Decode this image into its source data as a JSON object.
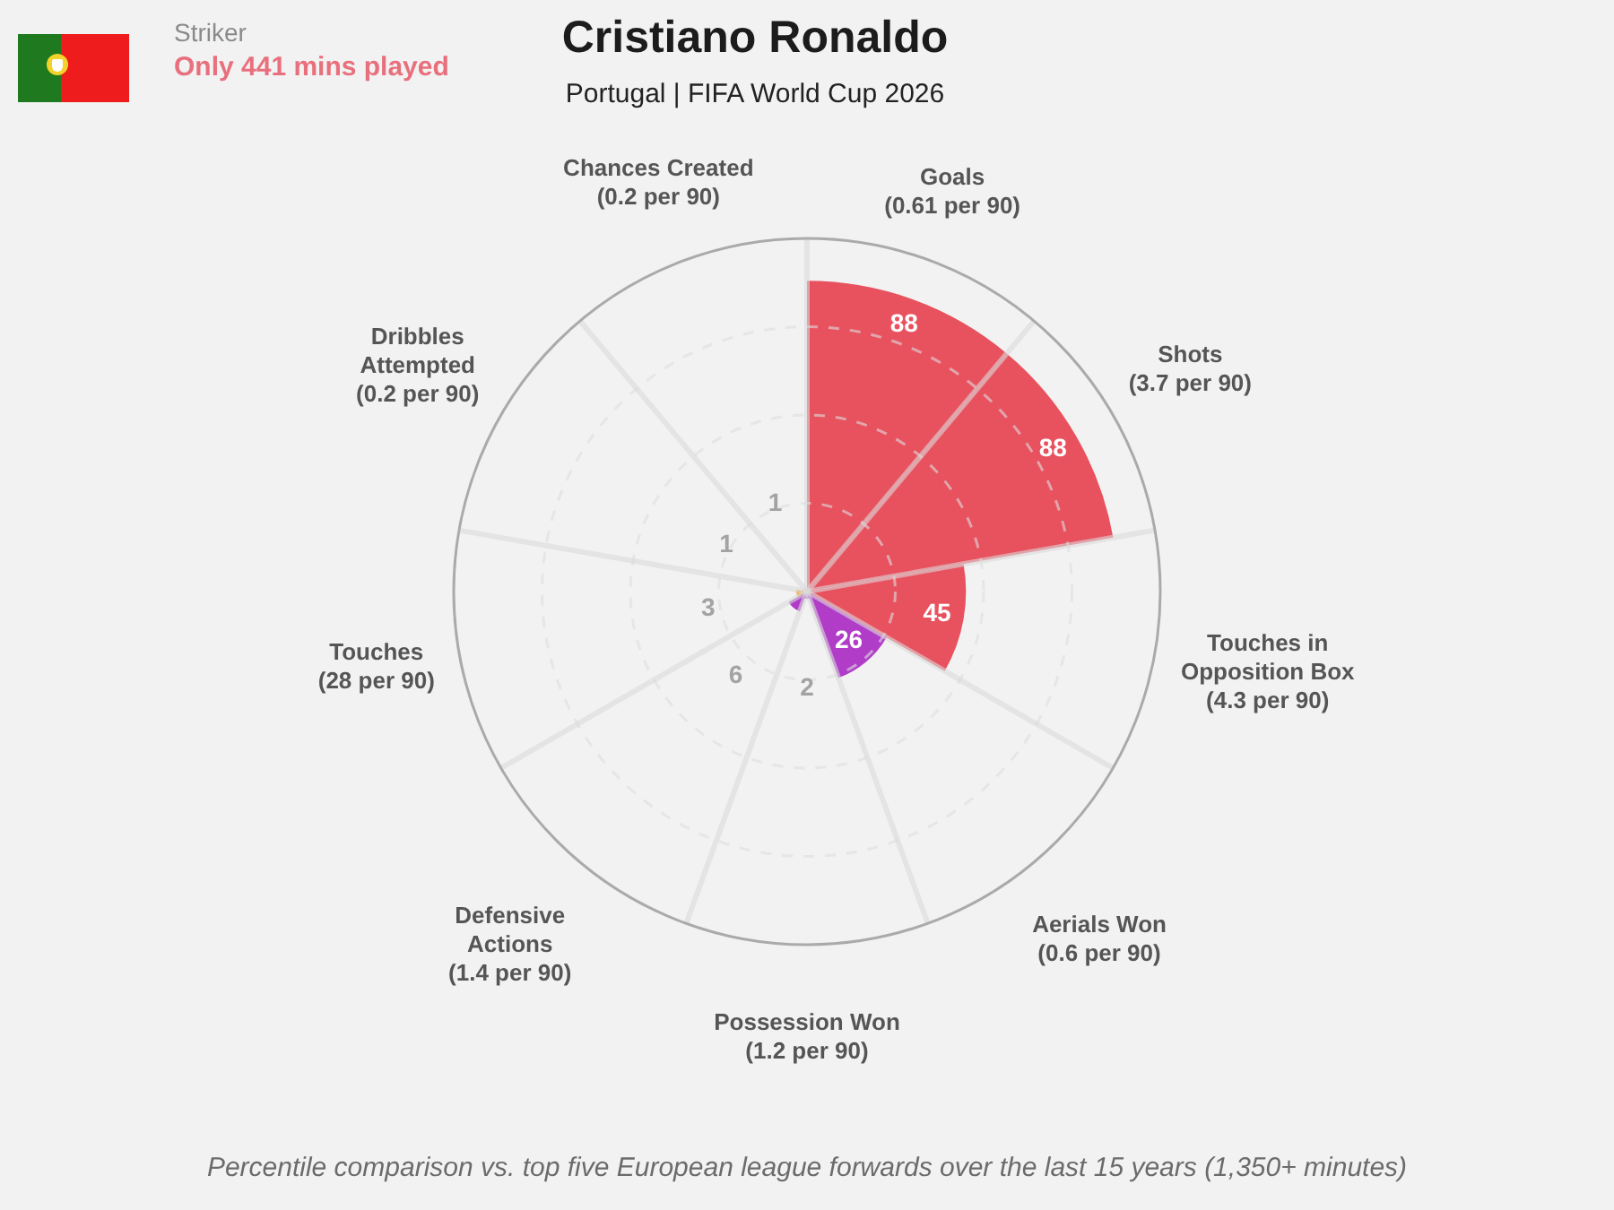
{
  "chart_data": {
    "type": "other",
    "title": "Cristiano Ronaldo",
    "subtitle": "Portugal | FIFA World Cup 2026",
    "categories": [
      "Goals (0.61 per 90)",
      "Shots (3.7 per 90)",
      "Touches in Opposition Box (4.3 per 90)",
      "Aerials Won (0.6 per 90)",
      "Possession Won (1.2 per 90)",
      "Defensive Actions (1.4 per 90)",
      "Touches (28 per 90)",
      "Dribbles Attempted (0.2 per 90)",
      "Chances Created (0.2 per 90)"
    ],
    "values": [
      88,
      88,
      45,
      26,
      2,
      6,
      3,
      1,
      1
    ],
    "colors": [
      "#e8525f",
      "#e8525f",
      "#e8525f",
      "#b03cc8",
      "#b03cc8",
      "#b03cc8",
      "#f5a83a",
      "#f5a83a",
      "#f5a83a"
    ],
    "data_labels": true,
    "annotations": [
      "Striker",
      "Only 441 mins played",
      "Percentile comparison vs. top five European league forwards over the last 15 years (1,350+ minutes)"
    ]
  }
}
